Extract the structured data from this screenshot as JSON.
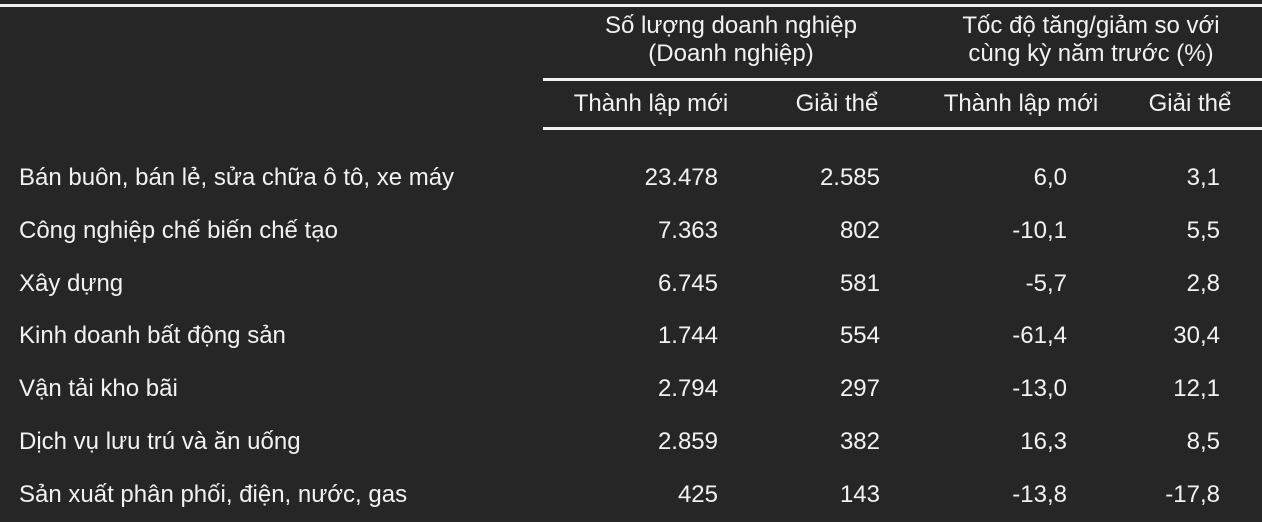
{
  "header": {
    "group1": {
      "line1": "Số lượng doanh nghiệp",
      "line2": "(Doanh nghiệp)"
    },
    "group2": {
      "line1": "Tốc độ tăng/giảm so với",
      "line2": "cùng kỳ năm trước (%)"
    },
    "sub": [
      "Thành lập mới",
      "Giải thể",
      "Thành lập mới",
      "Giải thể"
    ]
  },
  "rows": [
    {
      "label": "Bán buôn, bán lẻ, sửa chữa ô tô, xe máy",
      "values": [
        "23.478",
        "2.585",
        "6,0",
        "3,1"
      ]
    },
    {
      "label": "Công nghiệp chế biến chế tạo",
      "values": [
        "7.363",
        "802",
        "-10,1",
        "5,5"
      ]
    },
    {
      "label": "Xây dựng",
      "values": [
        "6.745",
        "581",
        "-5,7",
        "2,8"
      ]
    },
    {
      "label": "Kinh doanh bất động sản",
      "values": [
        "1.744",
        "554",
        "-61,4",
        "30,4"
      ]
    },
    {
      "label": "Vận tải kho bãi",
      "values": [
        "2.794",
        "297",
        "-13,0",
        "12,1"
      ]
    },
    {
      "label": "Dịch vụ lưu trú và ăn uống",
      "values": [
        "2.859",
        "382",
        "16,3",
        "8,5"
      ]
    },
    {
      "label": "Sản xuất phân phối, điện, nước, gas",
      "values": [
        "425",
        "143",
        "-13,8",
        "-17,8"
      ]
    }
  ]
}
